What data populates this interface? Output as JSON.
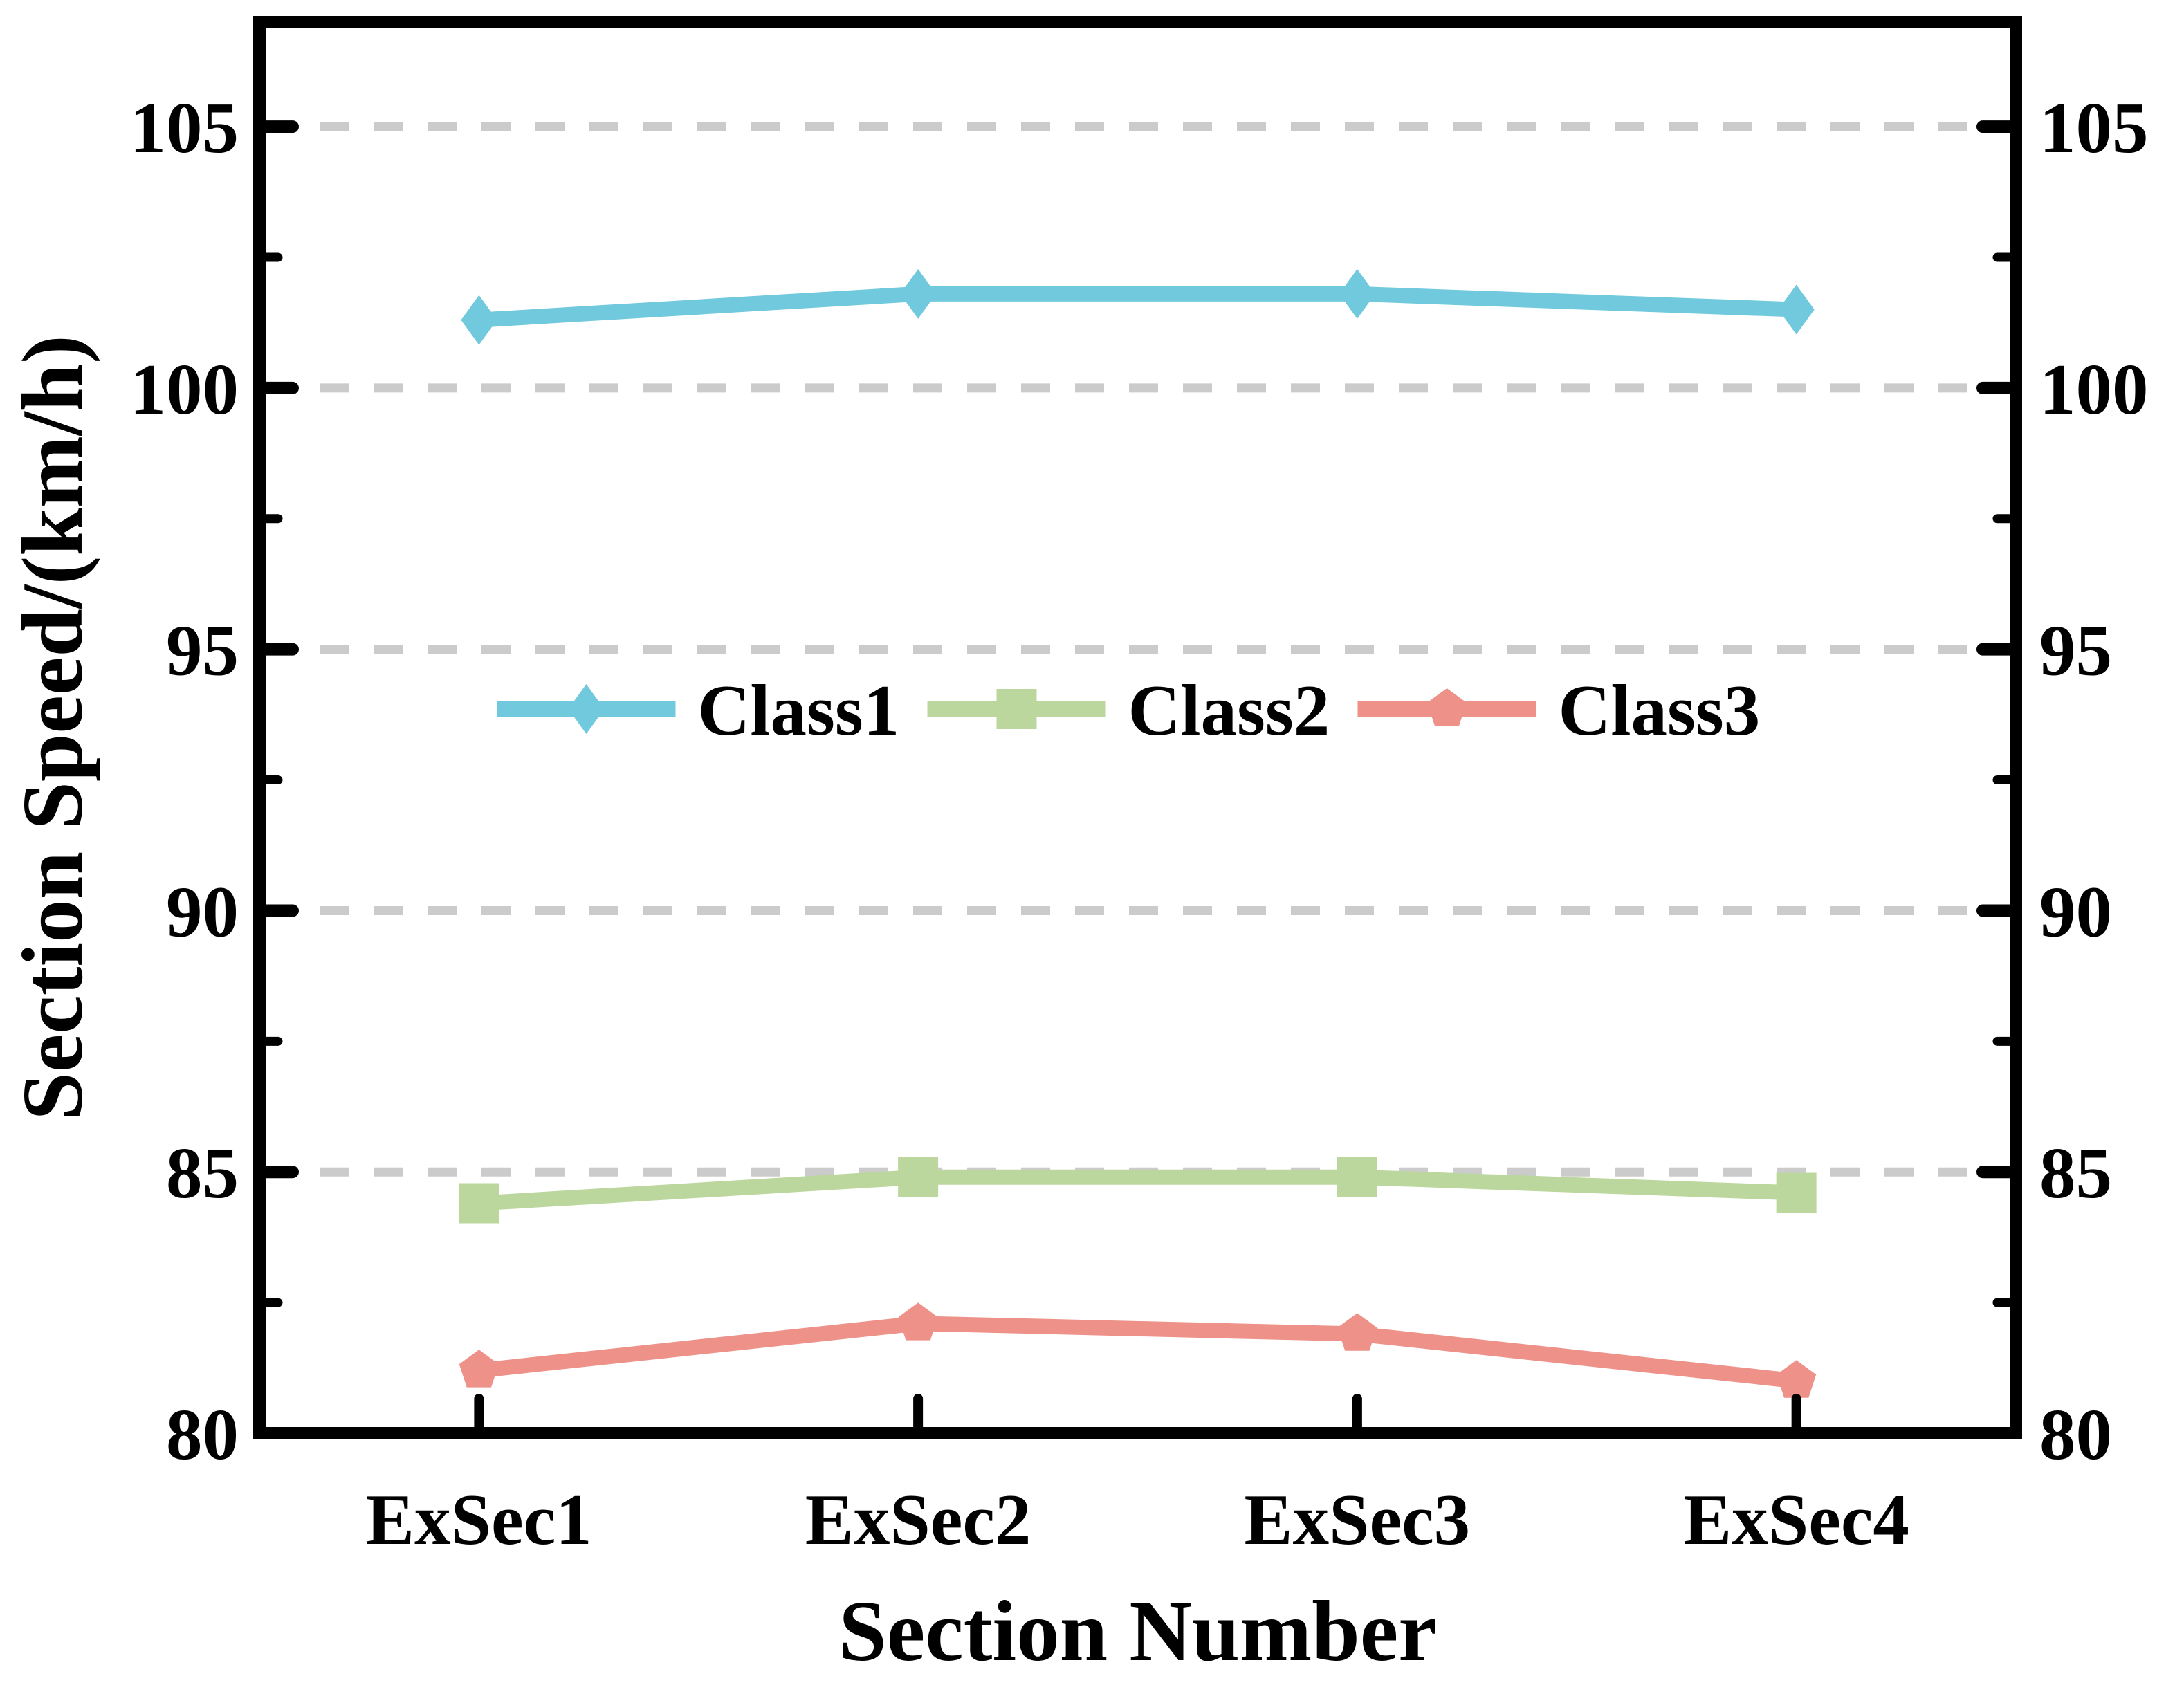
{
  "chart_data": {
    "type": "line",
    "title": "",
    "categories": [
      "ExSec1",
      "ExSec2",
      "ExSec3",
      "ExSec4"
    ],
    "series": [
      {
        "name": "Class1",
        "color": "#70C9DC",
        "marker": "diamond",
        "values": [
          101.3,
          101.8,
          101.8,
          101.5
        ]
      },
      {
        "name": "Class2",
        "color": "#BBD79D",
        "marker": "square",
        "values": [
          84.4,
          84.9,
          84.9,
          84.6
        ]
      },
      {
        "name": "Class3",
        "color": "#ED9189",
        "marker": "pentagon",
        "values": [
          81.2,
          82.1,
          81.9,
          81.0
        ]
      }
    ],
    "xlabel": "Section Number",
    "ylabel": "Section Speed/(km/h)",
    "ylim": [
      80,
      107
    ],
    "yticks": [
      80,
      85,
      90,
      95,
      100,
      105
    ],
    "minor_yticks": [
      82.5,
      87.5,
      92.5,
      97.5,
      102.5
    ],
    "ytick_labels": [
      "80",
      "85",
      "90",
      "95",
      "100",
      "105"
    ],
    "right_axis_tick_labels": [
      "80",
      "85",
      "90",
      "95",
      "100",
      "105"
    ],
    "grid": {
      "horizontal_dashed_at": [
        85,
        90,
        95,
        100,
        105
      ],
      "color": "#CBCBCB"
    },
    "legend": {
      "position": "center",
      "entries": [
        "Class1",
        "Class2",
        "Class3"
      ]
    },
    "axis_color": "#000000",
    "background": "#FFFFFF"
  }
}
